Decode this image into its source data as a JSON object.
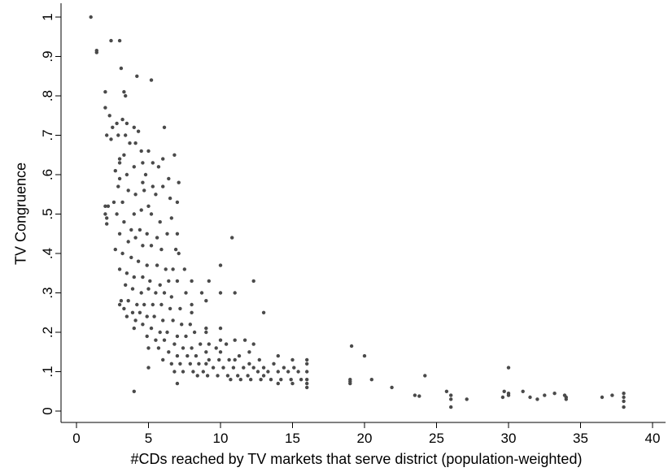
{
  "chart_data": {
    "type": "scatter",
    "xlabel": "#CDs reached by TV markets that serve district (population-weighted)",
    "ylabel": "TV Congruence",
    "xlim": [
      0,
      40
    ],
    "ylim": [
      0,
      1
    ],
    "x_ticks": [
      0,
      5,
      10,
      15,
      20,
      25,
      30,
      35,
      40
    ],
    "x_tick_labels": [
      "0",
      "5",
      "10",
      "15",
      "20",
      "25",
      "30",
      "35",
      "40"
    ],
    "y_ticks": [
      0,
      0.1,
      0.2,
      0.3,
      0.4,
      0.5,
      0.6,
      0.7,
      0.8,
      0.9,
      1
    ],
    "y_tick_labels": [
      "0",
      ".1",
      ".2",
      ".3",
      ".4",
      ".5",
      ".6",
      ".7",
      ".8",
      ".9",
      "1"
    ],
    "grid": false,
    "legend": "none",
    "point_color": "#4a4a4a",
    "points": [
      [
        1.0,
        1.0
      ],
      [
        1.4,
        0.915
      ],
      [
        1.4,
        0.91
      ],
      [
        2.4,
        0.94
      ],
      [
        3.0,
        0.94
      ],
      [
        3.1,
        0.87
      ],
      [
        4.2,
        0.85
      ],
      [
        5.2,
        0.84
      ],
      [
        2.0,
        0.81
      ],
      [
        3.3,
        0.81
      ],
      [
        2.0,
        0.77
      ],
      [
        2.3,
        0.75
      ],
      [
        2.5,
        0.72
      ],
      [
        2.8,
        0.73
      ],
      [
        3.2,
        0.74
      ],
      [
        3.5,
        0.73
      ],
      [
        4.0,
        0.72
      ],
      [
        4.3,
        0.71
      ],
      [
        6.1,
        0.72
      ],
      [
        2.1,
        0.7
      ],
      [
        2.4,
        0.69
      ],
      [
        2.9,
        0.7
      ],
      [
        3.4,
        0.7
      ],
      [
        3.7,
        0.68
      ],
      [
        4.1,
        0.68
      ],
      [
        4.5,
        0.66
      ],
      [
        5.0,
        0.66
      ],
      [
        5.3,
        0.63
      ],
      [
        6.8,
        0.65
      ],
      [
        3.0,
        0.64
      ],
      [
        3.3,
        0.65
      ],
      [
        4.6,
        0.63
      ],
      [
        5.7,
        0.62
      ],
      [
        6.4,
        0.59
      ],
      [
        7.1,
        0.58
      ],
      [
        2.7,
        0.61
      ],
      [
        3.0,
        0.59
      ],
      [
        3.5,
        0.6
      ],
      [
        4.0,
        0.62
      ],
      [
        4.8,
        0.6
      ],
      [
        5.3,
        0.57
      ],
      [
        6.0,
        0.57
      ],
      [
        2.9,
        0.57
      ],
      [
        3.6,
        0.56
      ],
      [
        4.1,
        0.55
      ],
      [
        4.7,
        0.56
      ],
      [
        5.5,
        0.55
      ],
      [
        6.5,
        0.54
      ],
      [
        7.0,
        0.53
      ],
      [
        2.0,
        0.52
      ],
      [
        2.6,
        0.53
      ],
      [
        3.2,
        0.53
      ],
      [
        4.0,
        0.5
      ],
      [
        4.5,
        0.51
      ],
      [
        5.2,
        0.5
      ],
      [
        5.8,
        0.48
      ],
      [
        6.6,
        0.49
      ],
      [
        2.0,
        0.5
      ],
      [
        2.1,
        0.49
      ],
      [
        2.1,
        0.475
      ],
      [
        2.8,
        0.5
      ],
      [
        3.3,
        0.48
      ],
      [
        3.8,
        0.46
      ],
      [
        4.4,
        0.46
      ],
      [
        4.9,
        0.45
      ],
      [
        5.6,
        0.44
      ],
      [
        6.3,
        0.45
      ],
      [
        6.9,
        0.41
      ],
      [
        3.0,
        0.45
      ],
      [
        3.6,
        0.43
      ],
      [
        4.1,
        0.44
      ],
      [
        4.6,
        0.42
      ],
      [
        5.2,
        0.42
      ],
      [
        5.9,
        0.41
      ],
      [
        7.1,
        0.4
      ],
      [
        2.7,
        0.41
      ],
      [
        3.2,
        0.4
      ],
      [
        3.8,
        0.39
      ],
      [
        4.3,
        0.38
      ],
      [
        4.9,
        0.37
      ],
      [
        5.6,
        0.37
      ],
      [
        6.2,
        0.36
      ],
      [
        6.7,
        0.36
      ],
      [
        7.5,
        0.36
      ],
      [
        3.0,
        0.36
      ],
      [
        3.5,
        0.35
      ],
      [
        4.0,
        0.34
      ],
      [
        4.6,
        0.34
      ],
      [
        5.1,
        0.33
      ],
      [
        5.8,
        0.32
      ],
      [
        6.4,
        0.33
      ],
      [
        7.0,
        0.33
      ],
      [
        8.0,
        0.33
      ],
      [
        3.4,
        0.32
      ],
      [
        3.9,
        0.31
      ],
      [
        4.5,
        0.3
      ],
      [
        5.0,
        0.31
      ],
      [
        5.5,
        0.3
      ],
      [
        6.1,
        0.3
      ],
      [
        6.6,
        0.29
      ],
      [
        7.6,
        0.3
      ],
      [
        3.1,
        0.28
      ],
      [
        3.6,
        0.28
      ],
      [
        4.2,
        0.27
      ],
      [
        4.7,
        0.27
      ],
      [
        5.3,
        0.27
      ],
      [
        5.9,
        0.27
      ],
      [
        6.5,
        0.26
      ],
      [
        7.2,
        0.26
      ],
      [
        3.3,
        0.26
      ],
      [
        3.9,
        0.25
      ],
      [
        4.4,
        0.25
      ],
      [
        4.9,
        0.24
      ],
      [
        5.4,
        0.24
      ],
      [
        6.0,
        0.23
      ],
      [
        6.7,
        0.23
      ],
      [
        7.3,
        0.22
      ],
      [
        7.9,
        0.22
      ],
      [
        8.0,
        0.25
      ],
      [
        3.5,
        0.24
      ],
      [
        4.1,
        0.23
      ],
      [
        4.6,
        0.22
      ],
      [
        5.2,
        0.21
      ],
      [
        5.8,
        0.2
      ],
      [
        6.3,
        0.2
      ],
      [
        7.0,
        0.19
      ],
      [
        7.6,
        0.19
      ],
      [
        8.2,
        0.2
      ],
      [
        9.0,
        0.21
      ],
      [
        3.0,
        0.27
      ],
      [
        4.0,
        0.21
      ],
      [
        4.9,
        0.19
      ],
      [
        5.5,
        0.18
      ],
      [
        6.1,
        0.18
      ],
      [
        6.8,
        0.17
      ],
      [
        7.4,
        0.16
      ],
      [
        8.0,
        0.16
      ],
      [
        8.6,
        0.17
      ],
      [
        9.2,
        0.17
      ],
      [
        10.0,
        0.18
      ],
      [
        5.0,
        0.16
      ],
      [
        5.7,
        0.16
      ],
      [
        6.4,
        0.15
      ],
      [
        7.0,
        0.14
      ],
      [
        7.7,
        0.14
      ],
      [
        8.3,
        0.14
      ],
      [
        9.0,
        0.15
      ],
      [
        9.7,
        0.16
      ],
      [
        10.4,
        0.17
      ],
      [
        11.0,
        0.18
      ],
      [
        11.7,
        0.18
      ],
      [
        12.3,
        0.17
      ],
      [
        6.0,
        0.13
      ],
      [
        6.6,
        0.12
      ],
      [
        7.2,
        0.12
      ],
      [
        7.9,
        0.12
      ],
      [
        8.5,
        0.12
      ],
      [
        9.2,
        0.13
      ],
      [
        9.9,
        0.13
      ],
      [
        10.6,
        0.13
      ],
      [
        11.3,
        0.14
      ],
      [
        12.0,
        0.15
      ],
      [
        12.7,
        0.13
      ],
      [
        6.8,
        0.1
      ],
      [
        7.4,
        0.1
      ],
      [
        8.1,
        0.1
      ],
      [
        8.8,
        0.1
      ],
      [
        9.5,
        0.11
      ],
      [
        10.2,
        0.11
      ],
      [
        10.9,
        0.11
      ],
      [
        11.6,
        0.11
      ],
      [
        12.3,
        0.11
      ],
      [
        13.0,
        0.11
      ],
      [
        13.7,
        0.12
      ],
      [
        14.4,
        0.11
      ],
      [
        15.1,
        0.11
      ],
      [
        16.0,
        0.12
      ],
      [
        8.4,
        0.09
      ],
      [
        9.1,
        0.09
      ],
      [
        9.8,
        0.09
      ],
      [
        10.5,
        0.09
      ],
      [
        11.2,
        0.09
      ],
      [
        11.9,
        0.09
      ],
      [
        12.6,
        0.1
      ],
      [
        13.3,
        0.1
      ],
      [
        14.0,
        0.1
      ],
      [
        14.7,
        0.1
      ],
      [
        15.4,
        0.1
      ],
      [
        16.0,
        0.1
      ],
      [
        10.7,
        0.08
      ],
      [
        11.4,
        0.08
      ],
      [
        12.1,
        0.08
      ],
      [
        12.8,
        0.08
      ],
      [
        13.5,
        0.08
      ],
      [
        14.2,
        0.08
      ],
      [
        14.9,
        0.08
      ],
      [
        15.6,
        0.08
      ],
      [
        16.0,
        0.08
      ],
      [
        14.0,
        0.07
      ],
      [
        15.0,
        0.07
      ],
      [
        16.0,
        0.07
      ],
      [
        14.0,
        0.14
      ],
      [
        15.0,
        0.13
      ],
      [
        16.0,
        0.13
      ],
      [
        16.0,
        0.06
      ],
      [
        10.0,
        0.3
      ],
      [
        10.0,
        0.37
      ],
      [
        10.8,
        0.44
      ],
      [
        12.3,
        0.33
      ],
      [
        13.0,
        0.25
      ],
      [
        9.2,
        0.33
      ],
      [
        8.7,
        0.3
      ],
      [
        11.0,
        0.3
      ],
      [
        5.0,
        0.11
      ],
      [
        7.0,
        0.07
      ],
      [
        4.0,
        0.05
      ],
      [
        2.2,
        0.52
      ],
      [
        3.0,
        0.63
      ],
      [
        3.4,
        0.8
      ],
      [
        4.6,
        0.58
      ],
      [
        5.0,
        0.52
      ],
      [
        6.0,
        0.64
      ],
      [
        7.0,
        0.45
      ],
      [
        8.0,
        0.27
      ],
      [
        9.0,
        0.28
      ],
      [
        9.0,
        0.2
      ],
      [
        9.0,
        0.12
      ],
      [
        10.0,
        0.15
      ],
      [
        10.0,
        0.21
      ],
      [
        11.0,
        0.13
      ],
      [
        12.0,
        0.12
      ],
      [
        13.0,
        0.09
      ],
      [
        19.0,
        0.08
      ],
      [
        19.0,
        0.075
      ],
      [
        19.0,
        0.07
      ],
      [
        19.1,
        0.165
      ],
      [
        20.5,
        0.08
      ],
      [
        21.9,
        0.06
      ],
      [
        23.5,
        0.04
      ],
      [
        23.8,
        0.038
      ],
      [
        24.2,
        0.09
      ],
      [
        25.7,
        0.05
      ],
      [
        26.0,
        0.04
      ],
      [
        26.0,
        0.03
      ],
      [
        26.0,
        0.01
      ],
      [
        27.1,
        0.03
      ],
      [
        30.0,
        0.11
      ],
      [
        29.7,
        0.05
      ],
      [
        30.0,
        0.045
      ],
      [
        30.0,
        0.04
      ],
      [
        29.6,
        0.035
      ],
      [
        31.0,
        0.05
      ],
      [
        31.5,
        0.035
      ],
      [
        32.0,
        0.03
      ],
      [
        32.5,
        0.04
      ],
      [
        33.2,
        0.045
      ],
      [
        33.9,
        0.04
      ],
      [
        34.0,
        0.035
      ],
      [
        34.0,
        0.03
      ],
      [
        36.5,
        0.035
      ],
      [
        37.2,
        0.04
      ],
      [
        38.0,
        0.045
      ],
      [
        38.0,
        0.035
      ],
      [
        38.0,
        0.025
      ],
      [
        38.0,
        0.01
      ],
      [
        20.0,
        0.14
      ]
    ]
  }
}
